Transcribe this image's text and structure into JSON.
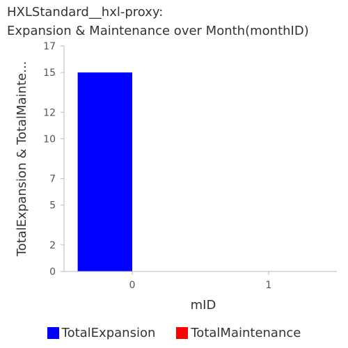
{
  "chart_data": {
    "type": "bar",
    "title_lines": [
      "HXLStandard__hxl-proxy:",
      "Expansion & Maintenance over Month(monthID)"
    ],
    "categories": [
      "0",
      "1"
    ],
    "xlabel": "mID",
    "ylabel": "TotalExpansion & TotalMainte...",
    "ylim": [
      0,
      17
    ],
    "yticks": [
      0,
      2,
      5,
      7,
      10,
      12,
      15,
      17
    ],
    "series": [
      {
        "name": "TotalExpansion",
        "color": "#0000ff",
        "values": [
          15,
          0
        ]
      },
      {
        "name": "TotalMaintenance",
        "color": "#ff0000",
        "values": [
          0,
          0
        ]
      }
    ],
    "grid": false,
    "legend_position": "bottom"
  }
}
